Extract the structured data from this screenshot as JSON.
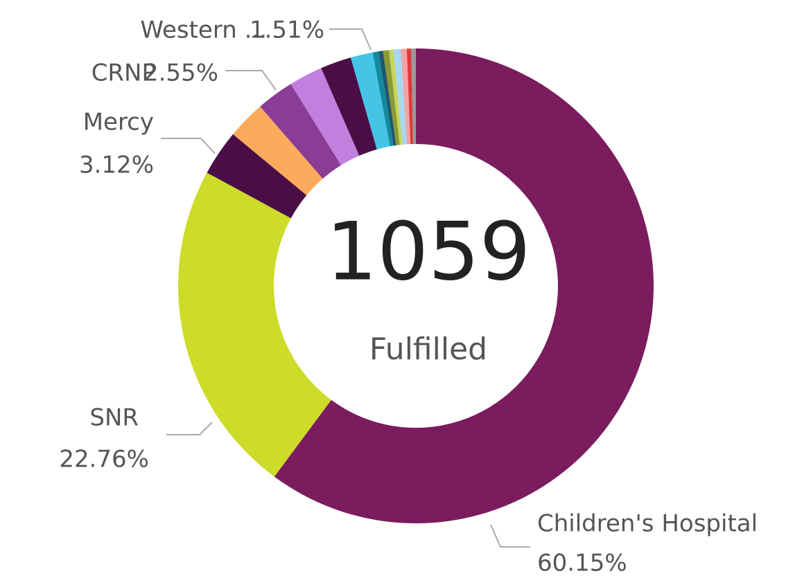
{
  "chart_data": {
    "type": "donut",
    "center_value": 1059,
    "center_label": "Fulfilled",
    "categories": [
      "Children's Hospital",
      "SNR",
      "Mercy",
      null,
      "CRNP",
      null,
      null,
      "Western ...",
      null,
      null,
      null,
      null,
      null,
      null,
      null,
      null
    ],
    "values": [
      60.15,
      22.76,
      3.12,
      2.6,
      2.55,
      2.3,
      2.1,
      1.51,
      0.4,
      0.3,
      0.4,
      0.3,
      0.5,
      0.4,
      0.3,
      0.31
    ],
    "value_labels": [
      "60.15%",
      "22.76%",
      "3.12%",
      null,
      "2.55%",
      null,
      null,
      "1.51%",
      null,
      null,
      null,
      null,
      null,
      null,
      null,
      null
    ],
    "colors": [
      "#7a1c5e",
      "#cddb29",
      "#4a0d45",
      "#fcaa5c",
      "#8a3d94",
      "#c27fde",
      "#4a0d45",
      "#45c4e6",
      "#138a9e",
      "#1f5670",
      "#8a9a34",
      "#c7d45a",
      "#a8d8f0",
      "#f2a3a3",
      "#e0383b",
      "#9a9a9a"
    ]
  }
}
